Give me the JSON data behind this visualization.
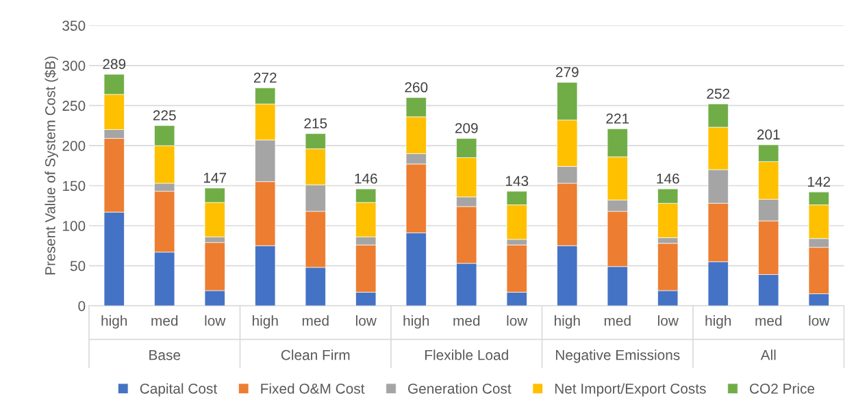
{
  "chart_data": {
    "type": "bar",
    "stacked": true,
    "ylabel": "Present Value of System Cost ($B)",
    "categories": [
      "high",
      "med",
      "low",
      "high",
      "med",
      "low",
      "high",
      "med",
      "low",
      "high",
      "med",
      "low",
      "high",
      "med",
      "low"
    ],
    "annotations": [
      "Base",
      "Clean Firm",
      "Flexible Load",
      "Negative Emissions",
      "All"
    ],
    "series": [
      {
        "name": "Capital Cost",
        "color": "#4472c4",
        "values": [
          117,
          67,
          19,
          75,
          48,
          17,
          91,
          53,
          17,
          75,
          49,
          19,
          55,
          39,
          15
        ]
      },
      {
        "name": "Fixed O&M Cost",
        "color": "#ed7d31",
        "values": [
          92,
          76,
          60,
          80,
          70,
          59,
          86,
          71,
          59,
          78,
          69,
          59,
          73,
          67,
          58
        ]
      },
      {
        "name": "Generation Cost",
        "color": "#a5a5a5",
        "values": [
          11,
          10,
          7,
          52,
          33,
          10,
          13,
          12,
          7,
          21,
          14,
          7,
          42,
          27,
          11
        ]
      },
      {
        "name": "Net Import/Export Costs",
        "color": "#ffc000",
        "values": [
          44,
          47,
          43,
          45,
          45,
          43,
          46,
          49,
          43,
          58,
          54,
          43,
          53,
          47,
          42
        ]
      },
      {
        "name": "CO2 Price",
        "color": "#70ad47",
        "values": [
          25,
          25,
          18,
          20,
          19,
          17,
          24,
          24,
          17,
          47,
          35,
          18,
          29,
          21,
          16
        ]
      }
    ],
    "totals": [
      "289",
      "225",
      "147",
      "272",
      "215",
      "146",
      "260",
      "209",
      "143",
      "279",
      "221",
      "146",
      "252",
      "201",
      "142"
    ],
    "ylim": [
      0,
      350
    ],
    "yticks": [
      0,
      50,
      100,
      150,
      200,
      250,
      300,
      350
    ],
    "grid": "y",
    "legend": "bottom"
  }
}
